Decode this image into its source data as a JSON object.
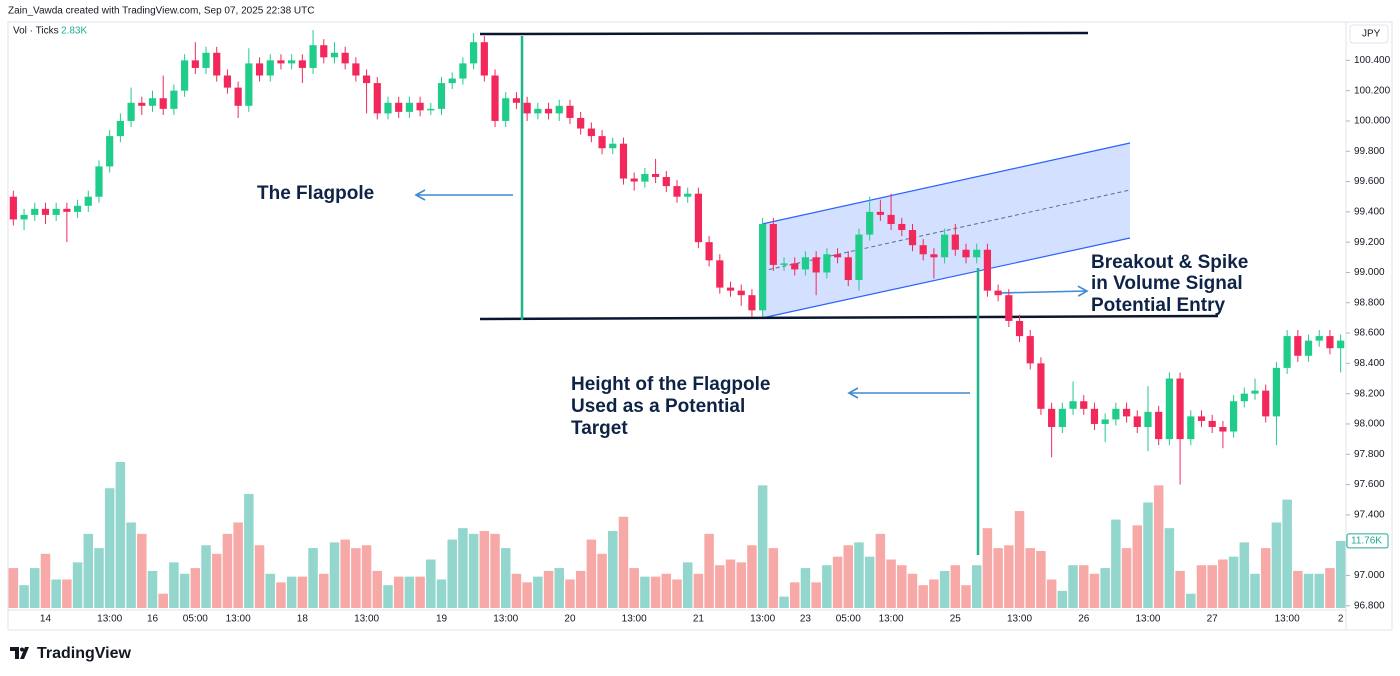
{
  "header": {
    "credit": "Zain_Vawda created with TradingView.com, Sep 07, 2025 22:38 UTC"
  },
  "chart_data": {
    "type": "candlestick",
    "currency": "JPY",
    "volume_legend": {
      "name": "Vol · Ticks",
      "value": "2.83K"
    },
    "volume_tag": "11.76K",
    "up_color": "#1fcc8a",
    "down_color": "#f2285b",
    "volume_up_color": "#92d6cd",
    "volume_down_color": "#f7a9a7",
    "grid": false,
    "ylim": [
      96.64,
      100.64
    ],
    "yticks": [
      {
        "value": 96.8,
        "label": "96.800"
      },
      {
        "value": 97,
        "label": "97.000"
      },
      {
        "value": 97.2,
        "label": "97.200"
      },
      {
        "value": 97.4,
        "label": "97.400"
      },
      {
        "value": 97.6,
        "label": "97.600"
      },
      {
        "value": 97.8,
        "label": "97.800"
      },
      {
        "value": 98,
        "label": "98.000"
      },
      {
        "value": 98.2,
        "label": "98.200"
      },
      {
        "value": 98.4,
        "label": "98.400"
      },
      {
        "value": 98.6,
        "label": "98.600"
      },
      {
        "value": 98.8,
        "label": "98.800"
      },
      {
        "value": 99,
        "label": "99.000"
      },
      {
        "value": 99.2,
        "label": "99.200"
      },
      {
        "value": 99.4,
        "label": "99.400"
      },
      {
        "value": 99.6,
        "label": "99.600"
      },
      {
        "value": 99.8,
        "label": "99.800"
      },
      {
        "value": 100,
        "label": "100.000"
      },
      {
        "value": 100.2,
        "label": "100.200"
      },
      {
        "value": 100.4,
        "label": "100.400"
      }
    ],
    "categories": [
      null,
      null,
      null,
      "14",
      null,
      null,
      null,
      null,
      null,
      "13:00",
      null,
      null,
      null,
      "16",
      null,
      null,
      null,
      "05:00",
      null,
      null,
      null,
      "13:00",
      null,
      null,
      null,
      null,
      null,
      "18",
      null,
      null,
      null,
      null,
      null,
      "13:00",
      null,
      null,
      null,
      null,
      null,
      null,
      "19",
      null,
      null,
      null,
      null,
      null,
      "13:00",
      null,
      null,
      null,
      null,
      null,
      "20",
      null,
      null,
      null,
      null,
      null,
      "13:00",
      null,
      null,
      null,
      null,
      null,
      "21",
      null,
      null,
      null,
      null,
      null,
      "13:00",
      null,
      null,
      null,
      "23",
      null,
      null,
      null,
      "05:00",
      null,
      null,
      null,
      "13:00",
      null,
      null,
      null,
      null,
      null,
      "25",
      null,
      null,
      null,
      null,
      null,
      "13:00",
      null,
      null,
      null,
      null,
      null,
      "26",
      null,
      null,
      null,
      null,
      null,
      "13:00",
      null,
      null,
      null,
      null,
      null,
      "27",
      null,
      null,
      null,
      null,
      null,
      null,
      "13:00",
      null,
      null,
      null,
      null,
      "2"
    ],
    "open": [
      99.5,
      99.35,
      99.38,
      99.42,
      99.38,
      99.42,
      99.4,
      99.44,
      99.5,
      99.7,
      99.9,
      100.0,
      100.12,
      100.1,
      100.15,
      100.08,
      100.2,
      100.4,
      100.35,
      100.45,
      100.3,
      100.22,
      100.1,
      100.38,
      100.3,
      100.4,
      100.38,
      100.4,
      100.35,
      100.5,
      100.42,
      100.45,
      100.38,
      100.3,
      100.25,
      100.05,
      100.12,
      100.06,
      100.12,
      100.07,
      100.08,
      100.25,
      100.28,
      100.38,
      100.52,
      100.3,
      100.0,
      100.15,
      100.12,
      100.05,
      100.08,
      100.05,
      100.1,
      100.02,
      99.95,
      99.9,
      99.82,
      99.85,
      99.62,
      99.6,
      99.65,
      99.63,
      99.57,
      99.5,
      99.52,
      99.2,
      99.08,
      98.9,
      98.88,
      98.85,
      98.75,
      99.32,
      99.05,
      99.06,
      99.02,
      99.1,
      99.0,
      99.12,
      99.1,
      98.95,
      99.25,
      99.4,
      99.38,
      99.32,
      99.28,
      99.18,
      99.12,
      99.1,
      99.25,
      99.15,
      99.1,
      99.15,
      98.88,
      98.85,
      98.68,
      98.58,
      98.4,
      98.1,
      97.98,
      98.1,
      98.15,
      98.1,
      98.0,
      98.03,
      98.1,
      98.05,
      97.98,
      98.08,
      97.9,
      98.3,
      97.9,
      98.05,
      98.02,
      97.98,
      97.95,
      98.15,
      98.2,
      98.22,
      98.05,
      98.37,
      98.58,
      98.45,
      98.55,
      98.58,
      98.5
    ],
    "high": [
      99.54,
      99.42,
      99.46,
      99.46,
      99.46,
      99.46,
      99.48,
      99.54,
      99.74,
      99.94,
      100.05,
      100.22,
      100.16,
      100.2,
      100.3,
      100.24,
      100.44,
      100.52,
      100.49,
      100.49,
      100.34,
      100.26,
      100.48,
      100.42,
      100.44,
      100.44,
      100.44,
      100.44,
      100.6,
      100.54,
      100.52,
      100.49,
      100.42,
      100.34,
      100.29,
      100.16,
      100.16,
      100.16,
      100.16,
      100.12,
      100.29,
      100.32,
      100.42,
      100.58,
      100.56,
      100.34,
      100.19,
      100.19,
      100.16,
      100.12,
      100.12,
      100.14,
      100.14,
      100.06,
      99.99,
      99.94,
      99.89,
      99.89,
      99.66,
      99.69,
      99.75,
      99.67,
      99.61,
      99.56,
      99.56,
      99.24,
      99.12,
      98.94,
      98.92,
      98.89,
      99.36,
      99.36,
      99.1,
      99.1,
      99.14,
      99.14,
      99.16,
      99.16,
      99.14,
      99.29,
      99.5,
      99.48,
      99.52,
      99.36,
      99.32,
      99.22,
      99.16,
      99.29,
      99.32,
      99.19,
      99.19,
      99.19,
      98.92,
      98.89,
      98.72,
      98.62,
      98.44,
      98.14,
      98.14,
      98.28,
      98.19,
      98.14,
      98.07,
      98.14,
      98.14,
      98.09,
      98.25,
      98.12,
      98.34,
      98.34,
      98.09,
      98.09,
      98.06,
      98.02,
      98.19,
      98.24,
      98.3,
      98.26,
      98.41,
      98.62,
      98.62,
      98.59,
      98.62,
      98.62,
      98.59
    ],
    "low": [
      99.31,
      99.28,
      99.34,
      99.32,
      99.34,
      99.2,
      99.36,
      99.4,
      99.46,
      99.66,
      99.86,
      99.96,
      100.04,
      100.06,
      100.04,
      100.04,
      100.16,
      100.31,
      100.31,
      100.26,
      100.18,
      100.02,
      100.06,
      100.26,
      100.26,
      100.34,
      100.34,
      100.25,
      100.31,
      100.38,
      100.38,
      100.34,
      100.26,
      100.05,
      100.01,
      100.01,
      100.02,
      100.02,
      100.03,
      100.04,
      100.04,
      100.21,
      100.24,
      100.34,
      100.26,
      99.96,
      99.96,
      100.08,
      100.0,
      100.01,
      100.01,
      100.0,
      99.98,
      99.91,
      99.86,
      99.78,
      99.78,
      99.58,
      99.54,
      99.56,
      99.59,
      99.53,
      99.46,
      99.46,
      99.16,
      99.04,
      98.86,
      98.84,
      98.78,
      98.71,
      98.71,
      99.01,
      99.01,
      98.98,
      98.98,
      98.85,
      98.96,
      99.06,
      98.91,
      98.88,
      99.21,
      99.34,
      99.28,
      99.24,
      99.14,
      99.08,
      98.96,
      99.06,
      99.11,
      99.06,
      99.06,
      98.84,
      98.81,
      98.64,
      98.54,
      98.36,
      98.06,
      97.78,
      97.94,
      98.06,
      98.06,
      97.96,
      97.88,
      97.99,
      98.01,
      97.94,
      97.82,
      97.86,
      97.86,
      97.6,
      97.86,
      97.98,
      97.94,
      97.84,
      97.91,
      98.11,
      98.16,
      98.01,
      97.86,
      98.33,
      98.41,
      98.41,
      98.51,
      98.46,
      98.34
    ],
    "close": [
      99.35,
      99.38,
      99.42,
      99.38,
      99.42,
      99.4,
      99.44,
      99.5,
      99.7,
      99.9,
      100.0,
      100.12,
      100.1,
      100.15,
      100.08,
      100.2,
      100.4,
      100.35,
      100.45,
      100.3,
      100.22,
      100.1,
      100.38,
      100.3,
      100.4,
      100.38,
      100.4,
      100.35,
      100.5,
      100.42,
      100.45,
      100.38,
      100.3,
      100.25,
      100.05,
      100.12,
      100.06,
      100.12,
      100.07,
      100.08,
      100.25,
      100.28,
      100.38,
      100.52,
      100.3,
      100.0,
      100.15,
      100.12,
      100.05,
      100.08,
      100.05,
      100.1,
      100.02,
      99.95,
      99.9,
      99.82,
      99.85,
      99.62,
      99.6,
      99.65,
      99.63,
      99.57,
      99.5,
      99.52,
      99.2,
      99.08,
      98.9,
      98.88,
      98.85,
      98.75,
      99.32,
      99.05,
      99.06,
      99.02,
      99.1,
      99.0,
      99.12,
      99.1,
      98.95,
      99.25,
      99.4,
      99.38,
      99.32,
      99.28,
      99.18,
      99.12,
      99.1,
      99.25,
      99.15,
      99.1,
      99.15,
      98.88,
      98.85,
      98.68,
      98.58,
      98.4,
      98.1,
      97.98,
      98.1,
      98.15,
      98.1,
      98.0,
      98.03,
      98.1,
      98.05,
      97.98,
      98.08,
      97.9,
      98.3,
      97.9,
      98.05,
      98.02,
      97.98,
      97.95,
      98.15,
      98.2,
      98.22,
      98.05,
      98.37,
      98.58,
      98.45,
      98.55,
      98.58,
      98.5,
      98.55
    ],
    "volume": [
      7,
      4,
      7,
      9.5,
      5,
      5,
      8,
      13,
      10.5,
      21,
      25.6,
      15,
      13,
      6.5,
      2.5,
      8,
      6,
      7,
      11,
      9.5,
      13,
      15,
      20,
      11,
      6,
      4.5,
      5.5,
      5.5,
      10.5,
      6,
      11.5,
      12,
      10.5,
      11,
      6.5,
      4,
      5.5,
      5.5,
      5.5,
      8.5,
      5,
      12,
      14,
      13,
      13.5,
      13,
      10.5,
      6,
      4.5,
      5.5,
      6.5,
      7,
      5,
      6.5,
      12,
      9.5,
      13.5,
      16,
      7,
      5.5,
      5.5,
      6,
      5,
      8,
      6,
      13,
      7.5,
      8.5,
      8,
      11,
      21.5,
      10.5,
      2,
      4.5,
      7,
      4.5,
      7.5,
      9,
      11,
      11.5,
      9,
      13,
      8.5,
      7.5,
      6,
      4,
      5,
      6.5,
      7.5,
      4,
      7.5,
      14,
      10.5,
      11,
      17,
      10.5,
      10,
      5,
      3,
      7.5,
      7.5,
      6,
      7,
      15.5,
      10.5,
      14.5,
      18.5,
      21.5,
      14,
      6.5,
      2.5,
      7.5,
      7.5,
      8.5,
      9,
      11.5,
      6,
      10.5,
      15,
      19,
      6.5,
      6,
      6,
      7,
      11.76
    ],
    "annotations": [
      {
        "lines": [
          "The Flagpole"
        ]
      },
      {
        "lines": [
          "Breakout & Spike",
          "in Volume Signal",
          "Potential Entry"
        ]
      },
      {
        "lines": [
          "Height of the Flagpole",
          "Used as a Potential",
          "Target"
        ]
      }
    ]
  },
  "footer": {
    "logo": "TradingView"
  }
}
